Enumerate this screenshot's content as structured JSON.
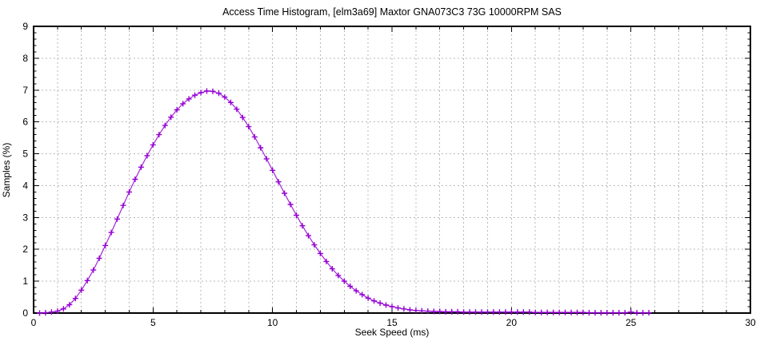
{
  "colors": {
    "series": "#9400d3",
    "grid": "#b8b8b8",
    "axis": "#000000",
    "background": "#ffffff"
  },
  "chart_data": {
    "type": "line",
    "title": "Access Time Histogram, [elm3a69] Maxtor GNA073C3 73G 10000RPM SAS",
    "xlabel": "Seek Speed (ms)",
    "ylabel": "Samples (%)",
    "xlim": [
      0,
      30
    ],
    "ylim": [
      0,
      9
    ],
    "grid": true,
    "legend_position": "none",
    "x_major_ticks": [
      0,
      5,
      10,
      15,
      20,
      25,
      30
    ],
    "x_minor_step": 1,
    "y_major_ticks": [
      0,
      1,
      2,
      3,
      4,
      5,
      6,
      7,
      8,
      9
    ],
    "y_minor_step": 0.2,
    "series": [
      {
        "name": "samples",
        "color": "#9400d3",
        "marker": "plus",
        "x": [
          0.25,
          0.5,
          0.75,
          1,
          1.25,
          1.5,
          1.75,
          2,
          2.25,
          2.5,
          2.75,
          3,
          3.25,
          3.5,
          3.75,
          4,
          4.25,
          4.5,
          4.75,
          5,
          5.25,
          5.5,
          5.75,
          6,
          6.25,
          6.5,
          6.75,
          7,
          7.25,
          7.5,
          7.75,
          8,
          8.25,
          8.5,
          8.75,
          9,
          9.25,
          9.5,
          9.75,
          10,
          10.25,
          10.5,
          10.75,
          11,
          11.25,
          11.5,
          11.75,
          12,
          12.25,
          12.5,
          12.75,
          13,
          13.25,
          13.5,
          13.75,
          14,
          14.25,
          14.5,
          14.75,
          15,
          15.25,
          15.5,
          15.75,
          16,
          16.25,
          16.5,
          16.75,
          17,
          17.25,
          17.5,
          17.75,
          18,
          18.25,
          18.5,
          18.75,
          19,
          19.25,
          19.5,
          19.75,
          20,
          20.25,
          20.5,
          20.75,
          21,
          21.25,
          21.5,
          21.75,
          22,
          22.25,
          22.5,
          22.75,
          23,
          23.25,
          23.5,
          23.75,
          24,
          24.25,
          24.5,
          24.75,
          25,
          25.25,
          25.5,
          25.75
        ],
        "y": [
          0.0,
          0.01,
          0.03,
          0.06,
          0.13,
          0.26,
          0.46,
          0.72,
          1.02,
          1.35,
          1.72,
          2.12,
          2.53,
          2.95,
          3.38,
          3.8,
          4.2,
          4.58,
          4.94,
          5.28,
          5.6,
          5.89,
          6.15,
          6.38,
          6.57,
          6.72,
          6.84,
          6.92,
          6.97,
          6.96,
          6.9,
          6.78,
          6.61,
          6.4,
          6.14,
          5.85,
          5.53,
          5.19,
          4.84,
          4.48,
          4.12,
          3.76,
          3.41,
          3.07,
          2.74,
          2.43,
          2.14,
          1.87,
          1.62,
          1.39,
          1.18,
          1.0,
          0.84,
          0.7,
          0.58,
          0.47,
          0.38,
          0.31,
          0.25,
          0.2,
          0.16,
          0.13,
          0.1,
          0.08,
          0.07,
          0.06,
          0.05,
          0.05,
          0.04,
          0.04,
          0.04,
          0.03,
          0.03,
          0.03,
          0.03,
          0.03,
          0.03,
          0.03,
          0.03,
          0.03,
          0.03,
          0.03,
          0.03,
          0.02,
          0.02,
          0.02,
          0.02,
          0.02,
          0.02,
          0.02,
          0.02,
          0.02,
          0.01,
          0.01,
          0.01,
          0.01,
          0.01,
          0.01,
          0.01,
          0.03,
          0.01,
          0.01,
          0.01
        ]
      }
    ]
  }
}
